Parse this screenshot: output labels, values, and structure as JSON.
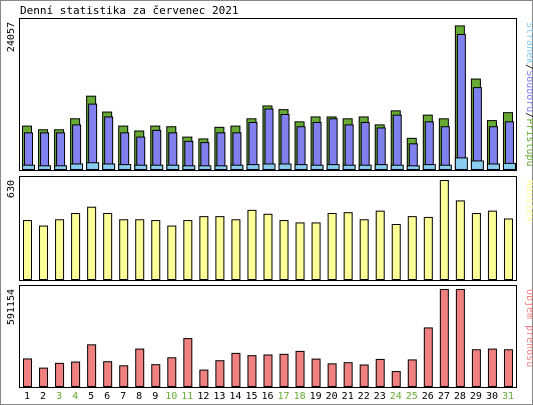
{
  "title": "Denní statistika za červenec 2021",
  "colors": {
    "hits": "#66aa33",
    "files": "#8080ee",
    "pages": "#88ccee",
    "visits": "#ffff99",
    "kbytes": "#f08080",
    "weekend_day_label": "#66aa33",
    "weekday_label": "#000000"
  },
  "chart_data": [
    {
      "type": "bar",
      "title": "Denní statistika za červenec 2021",
      "categories": [
        "1",
        "2",
        "3",
        "4",
        "5",
        "6",
        "7",
        "8",
        "9",
        "10",
        "11",
        "12",
        "13",
        "14",
        "15",
        "16",
        "17",
        "18",
        "19",
        "20",
        "21",
        "22",
        "23",
        "24",
        "25",
        "26",
        "27",
        "28",
        "29",
        "30",
        "31"
      ],
      "weekend_days": [
        "3",
        "4",
        "10",
        "11",
        "17",
        "18",
        "24",
        "25",
        "31"
      ],
      "ylabel_max": "24057",
      "ylim": [
        0,
        24057
      ],
      "legend": {
        "placement": "right",
        "items": [
          "Stránek",
          "Souborů",
          "Přístupů"
        ],
        "separator": "/"
      },
      "series": [
        {
          "name": "Přístupů",
          "color_key": "hits",
          "values": [
            7100,
            6500,
            6500,
            8300,
            12000,
            9400,
            7100,
            6300,
            7100,
            7000,
            5300,
            5000,
            6900,
            7100,
            8300,
            10400,
            9800,
            7800,
            8600,
            8600,
            8300,
            8600,
            7300,
            9600,
            5100,
            8900,
            8300,
            23500,
            14800,
            8000,
            9300
          ]
        },
        {
          "name": "Souborů",
          "color_key": "files",
          "values": [
            6000,
            6000,
            6000,
            7300,
            10700,
            8600,
            6000,
            5300,
            6400,
            6000,
            4600,
            4400,
            6000,
            6000,
            7700,
            9900,
            9000,
            7000,
            7700,
            8300,
            7300,
            7700,
            6800,
            8900,
            4200,
            7800,
            7000,
            22100,
            13400,
            7000,
            7800
          ]
        },
        {
          "name": "Stránek",
          "color_key": "pages",
          "values": [
            700,
            600,
            600,
            900,
            1100,
            900,
            800,
            700,
            700,
            700,
            600,
            600,
            600,
            700,
            800,
            900,
            900,
            800,
            700,
            800,
            700,
            700,
            800,
            700,
            600,
            800,
            700,
            1900,
            1400,
            900,
            1000
          ]
        }
      ]
    },
    {
      "type": "bar",
      "categories": [
        "1",
        "2",
        "3",
        "4",
        "5",
        "6",
        "7",
        "8",
        "9",
        "10",
        "11",
        "12",
        "13",
        "14",
        "15",
        "16",
        "17",
        "18",
        "19",
        "20",
        "21",
        "22",
        "23",
        "24",
        "25",
        "26",
        "27",
        "28",
        "29",
        "30",
        "31"
      ],
      "ylabel_max": "630",
      "ylim": [
        0,
        630
      ],
      "legend": {
        "placement": "right",
        "items": [
          "Návštěv"
        ]
      },
      "series": [
        {
          "name": "Návštěv",
          "color_key": "visits",
          "values": [
            375,
            340,
            380,
            420,
            460,
            420,
            380,
            380,
            375,
            340,
            375,
            400,
            400,
            380,
            440,
            415,
            375,
            360,
            360,
            420,
            425,
            380,
            435,
            350,
            400,
            395,
            630,
            500,
            420,
            435,
            385
          ]
        }
      ]
    },
    {
      "type": "bar",
      "categories": [
        "1",
        "2",
        "3",
        "4",
        "5",
        "6",
        "7",
        "8",
        "9",
        "10",
        "11",
        "12",
        "13",
        "14",
        "15",
        "16",
        "17",
        "18",
        "19",
        "20",
        "21",
        "22",
        "23",
        "24",
        "25",
        "26",
        "27",
        "28",
        "29",
        "30",
        "31"
      ],
      "ylabel_max": "591154",
      "ylim": [
        0,
        591154
      ],
      "legend": {
        "placement": "right",
        "items": [
          "Objem přenosů"
        ]
      },
      "series": [
        {
          "name": "Objem přenosů",
          "color_key": "kbytes",
          "values": [
            168000,
            112000,
            141000,
            149000,
            254000,
            151000,
            126000,
            228000,
            133000,
            175000,
            292000,
            100000,
            157000,
            202000,
            188000,
            192000,
            196000,
            214000,
            167000,
            138000,
            145000,
            131000,
            165000,
            91000,
            162000,
            357000,
            591154,
            591154,
            224000,
            228000,
            224000
          ]
        }
      ]
    }
  ]
}
